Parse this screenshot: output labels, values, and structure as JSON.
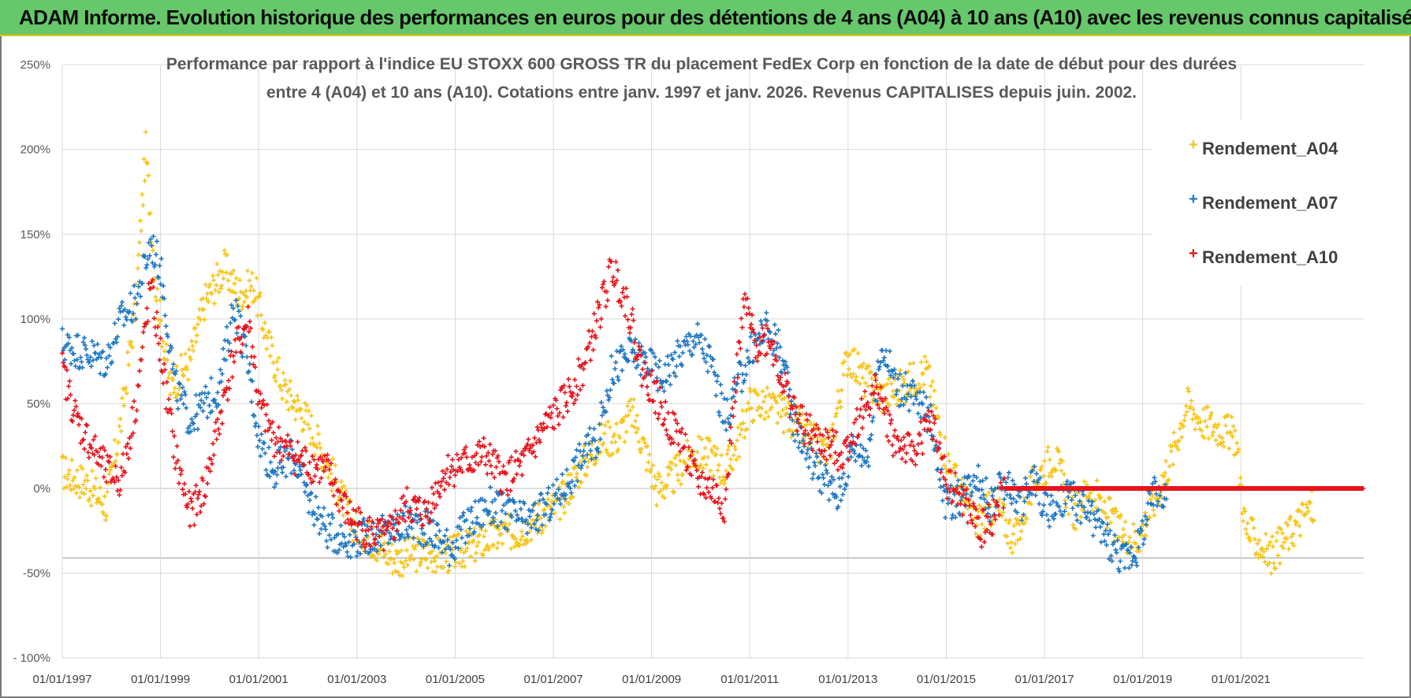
{
  "header": {
    "title": "ADAM Informe. Evolution historique des performances en euros pour des détentions de 4 ans (A04) à 10 ans (A10) avec les revenus connus capitalisés"
  },
  "colors": {
    "banner": "#67c76b",
    "banner_border": "#f4c20d",
    "A04": "#f5c518",
    "A07": "#1f77c2",
    "A10": "#e8141c",
    "grid": "#d9d9d9"
  },
  "chart_data": {
    "type": "scatter",
    "title": [
      "Performance par rapport à l'indice EU STOXX 600 GROSS TR  du placement FedEx Corp en fonction de la date de début pour des durées",
      "entre 4 (A04) et 10 ans (A10).  Cotations entre janv. 1997 et janv. 2026. Revenus CAPITALISES depuis juin. 2002."
    ],
    "xlabel": "",
    "ylabel": "",
    "x_range": [
      1997.0,
      2023.5
    ],
    "ylim": [
      -100,
      250
    ],
    "y_ticks": [
      250,
      200,
      150,
      100,
      50,
      0,
      -50,
      -100
    ],
    "y_tick_labels": [
      "250%",
      "200%",
      "150%",
      "100%",
      "50%",
      "0%",
      "-50%",
      "- 100%"
    ],
    "x_ticks": [
      1997,
      1999,
      2001,
      2003,
      2005,
      2007,
      2009,
      2011,
      2013,
      2015,
      2017,
      2019,
      2021
    ],
    "x_tick_labels": [
      "01/01/1997",
      "01/01/1999",
      "01/01/2001",
      "01/01/2003",
      "01/01/2005",
      "01/01/2007",
      "01/01/2009",
      "01/01/2011",
      "01/01/2013",
      "01/01/2015",
      "01/01/2017",
      "01/01/2019",
      "01/01/2021"
    ],
    "grid": true,
    "legend_position": "top-right",
    "series": [
      {
        "name": "Rendement_A04",
        "color": "#f5c518",
        "points": [
          [
            1997.0,
            10
          ],
          [
            1997.5,
            3
          ],
          [
            1997.9,
            -10
          ],
          [
            1998.2,
            40
          ],
          [
            1998.5,
            110
          ],
          [
            1998.7,
            200
          ],
          [
            1998.9,
            120
          ],
          [
            1999.2,
            60
          ],
          [
            1999.6,
            75
          ],
          [
            1999.9,
            110
          ],
          [
            2000.3,
            130
          ],
          [
            2000.6,
            115
          ],
          [
            2000.9,
            120
          ],
          [
            2001.2,
            85
          ],
          [
            2001.5,
            60
          ],
          [
            2002.0,
            40
          ],
          [
            2002.4,
            15
          ],
          [
            2002.9,
            -20
          ],
          [
            2003.3,
            -30
          ],
          [
            2003.8,
            -42
          ],
          [
            2004.3,
            -38
          ],
          [
            2004.8,
            -40
          ],
          [
            2005.3,
            -35
          ],
          [
            2005.8,
            -28
          ],
          [
            2006.3,
            -25
          ],
          [
            2006.8,
            -15
          ],
          [
            2007.1,
            -10
          ],
          [
            2007.5,
            10
          ],
          [
            2008.0,
            30
          ],
          [
            2008.3,
            30
          ],
          [
            2008.6,
            45
          ],
          [
            2008.9,
            20
          ],
          [
            2009.1,
            0
          ],
          [
            2009.4,
            5
          ],
          [
            2009.8,
            20
          ],
          [
            2010.2,
            20
          ],
          [
            2010.5,
            10
          ],
          [
            2010.8,
            30
          ],
          [
            2011.0,
            50
          ],
          [
            2011.3,
            50
          ],
          [
            2011.6,
            45
          ],
          [
            2011.9,
            40
          ],
          [
            2012.2,
            30
          ],
          [
            2012.6,
            20
          ],
          [
            2013.0,
            80
          ],
          [
            2013.3,
            65
          ],
          [
            2013.7,
            55
          ],
          [
            2014.1,
            60
          ],
          [
            2014.6,
            70
          ],
          [
            2014.9,
            30
          ],
          [
            2015.1,
            10
          ],
          [
            2015.6,
            -20
          ],
          [
            2016.0,
            -10
          ],
          [
            2016.4,
            -30
          ],
          [
            2016.8,
            5
          ],
          [
            2017.2,
            20
          ],
          [
            2017.6,
            -15
          ],
          [
            2017.9,
            0
          ],
          [
            2018.2,
            -10
          ],
          [
            2018.5,
            -25
          ],
          [
            2018.9,
            -30
          ],
          [
            2019.2,
            -10
          ],
          [
            2019.6,
            20
          ],
          [
            2019.9,
            50
          ],
          [
            2020.2,
            40
          ],
          [
            2020.6,
            35
          ],
          [
            2020.9,
            30
          ],
          [
            2021.1,
            -25
          ],
          [
            2021.3,
            -30
          ],
          [
            2021.6,
            -40
          ],
          [
            2021.9,
            -30
          ],
          [
            2022.3,
            -15
          ],
          [
            2022.5,
            -10
          ]
        ]
      },
      {
        "name": "Rendement_A07",
        "color": "#1f77c2",
        "points": [
          [
            1997.0,
            85
          ],
          [
            1997.5,
            80
          ],
          [
            1997.9,
            75
          ],
          [
            1998.2,
            100
          ],
          [
            1998.5,
            110
          ],
          [
            1998.8,
            145
          ],
          [
            1999.0,
            130
          ],
          [
            1999.3,
            60
          ],
          [
            1999.6,
            40
          ],
          [
            1999.9,
            50
          ],
          [
            2000.2,
            60
          ],
          [
            2000.5,
            110
          ],
          [
            2000.8,
            70
          ],
          [
            2001.0,
            30
          ],
          [
            2001.3,
            10
          ],
          [
            2001.7,
            20
          ],
          [
            2002.0,
            -5
          ],
          [
            2002.4,
            -25
          ],
          [
            2002.8,
            -30
          ],
          [
            2003.3,
            -28
          ],
          [
            2003.7,
            -25
          ],
          [
            2004.1,
            -20
          ],
          [
            2004.5,
            -25
          ],
          [
            2004.9,
            -35
          ],
          [
            2005.3,
            -20
          ],
          [
            2005.7,
            -10
          ],
          [
            2006.1,
            -15
          ],
          [
            2006.5,
            -20
          ],
          [
            2006.9,
            -10
          ],
          [
            2007.2,
            0
          ],
          [
            2007.6,
            20
          ],
          [
            2007.9,
            30
          ],
          [
            2008.2,
            70
          ],
          [
            2008.6,
            80
          ],
          [
            2008.9,
            75
          ],
          [
            2009.2,
            65
          ],
          [
            2009.6,
            80
          ],
          [
            2009.9,
            90
          ],
          [
            2010.2,
            75
          ],
          [
            2010.5,
            40
          ],
          [
            2010.8,
            65
          ],
          [
            2011.0,
            80
          ],
          [
            2011.3,
            95
          ],
          [
            2011.6,
            85
          ],
          [
            2011.9,
            40
          ],
          [
            2012.2,
            20
          ],
          [
            2012.5,
            5
          ],
          [
            2012.8,
            -5
          ],
          [
            2013.1,
            25
          ],
          [
            2013.4,
            20
          ],
          [
            2013.7,
            85
          ],
          [
            2014.0,
            60
          ],
          [
            2014.3,
            55
          ],
          [
            2014.7,
            40
          ],
          [
            2015.0,
            -10
          ],
          [
            2015.3,
            -5
          ],
          [
            2015.6,
            10
          ],
          [
            2015.9,
            -10
          ],
          [
            2016.2,
            5
          ],
          [
            2016.5,
            -10
          ],
          [
            2016.8,
            5
          ],
          [
            2017.1,
            -15
          ],
          [
            2017.5,
            -5
          ],
          [
            2017.9,
            -15
          ],
          [
            2018.3,
            -30
          ],
          [
            2018.6,
            -42
          ],
          [
            2018.9,
            -35
          ],
          [
            2019.2,
            -5
          ],
          [
            2019.5,
            0
          ]
        ]
      },
      {
        "name": "Rendement_A10",
        "color": "#e8141c",
        "points": [
          [
            1997.0,
            70
          ],
          [
            1997.3,
            40
          ],
          [
            1997.6,
            25
          ],
          [
            1997.9,
            10
          ],
          [
            1998.2,
            5
          ],
          [
            1998.5,
            50
          ],
          [
            1998.8,
            120
          ],
          [
            1999.0,
            80
          ],
          [
            1999.3,
            20
          ],
          [
            1999.6,
            -15
          ],
          [
            1999.9,
            0
          ],
          [
            2000.2,
            40
          ],
          [
            2000.5,
            80
          ],
          [
            2000.8,
            100
          ],
          [
            2001.0,
            50
          ],
          [
            2001.3,
            30
          ],
          [
            2001.7,
            20
          ],
          [
            2002.0,
            15
          ],
          [
            2002.4,
            10
          ],
          [
            2002.8,
            -15
          ],
          [
            2003.2,
            -25
          ],
          [
            2003.6,
            -30
          ],
          [
            2004.0,
            -10
          ],
          [
            2004.4,
            -15
          ],
          [
            2004.8,
            10
          ],
          [
            2005.2,
            15
          ],
          [
            2005.6,
            20
          ],
          [
            2006.0,
            5
          ],
          [
            2006.4,
            15
          ],
          [
            2006.8,
            35
          ],
          [
            2007.2,
            50
          ],
          [
            2007.6,
            70
          ],
          [
            2007.9,
            100
          ],
          [
            2008.2,
            130
          ],
          [
            2008.5,
            110
          ],
          [
            2008.8,
            70
          ],
          [
            2009.0,
            60
          ],
          [
            2009.3,
            40
          ],
          [
            2009.6,
            30
          ],
          [
            2009.9,
            5
          ],
          [
            2010.2,
            0
          ],
          [
            2010.5,
            -10
          ],
          [
            2010.7,
            60
          ],
          [
            2010.9,
            110
          ],
          [
            2011.1,
            85
          ],
          [
            2011.4,
            90
          ],
          [
            2011.7,
            60
          ],
          [
            2012.0,
            40
          ],
          [
            2012.3,
            30
          ],
          [
            2012.6,
            25
          ],
          [
            2012.9,
            20
          ],
          [
            2013.2,
            40
          ],
          [
            2013.6,
            60
          ],
          [
            2013.9,
            30
          ],
          [
            2014.3,
            20
          ],
          [
            2014.7,
            40
          ],
          [
            2015.0,
            5
          ],
          [
            2015.4,
            -10
          ],
          [
            2015.7,
            -25
          ],
          [
            2016.0,
            -15
          ],
          [
            2016.2,
            0
          ],
          [
            2017.0,
            0
          ],
          [
            2018.0,
            0
          ],
          [
            2019.0,
            0
          ],
          [
            2020.0,
            0
          ],
          [
            2021.0,
            0
          ],
          [
            2022.0,
            0
          ],
          [
            2023.0,
            0
          ],
          [
            2023.5,
            0
          ]
        ]
      }
    ]
  }
}
